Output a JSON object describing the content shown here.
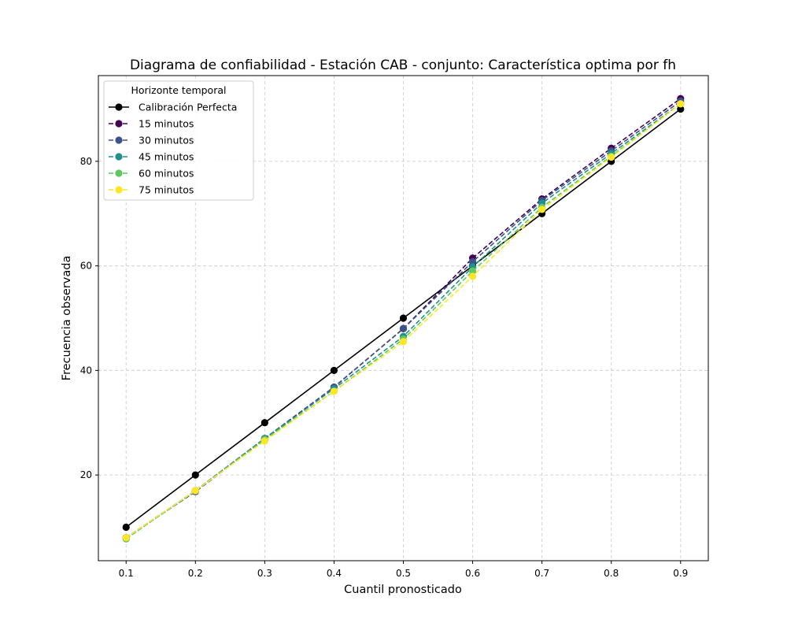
{
  "chart_data": {
    "type": "line",
    "title": "Diagrama de confiabilidad - Estación CAB - conjunto: Característica optima por fh",
    "xlabel": "Cuantil pronosticado",
    "ylabel": "Frecuencia observada",
    "x": [
      0.1,
      0.2,
      0.3,
      0.4,
      0.5,
      0.6,
      0.7,
      0.8,
      0.9
    ],
    "x_tick_labels": [
      "0.1",
      "0.2",
      "0.3",
      "0.4",
      "0.5",
      "0.6",
      "0.7",
      "0.8",
      "0.9"
    ],
    "y_ticks": [
      20,
      40,
      60,
      80
    ],
    "y_tick_labels": [
      "20",
      "40",
      "60",
      "80"
    ],
    "xlim": [
      0.06,
      0.94
    ],
    "ylim": [
      3.6,
      96.4
    ],
    "grid": true,
    "legend_title": "Horizonte temporal",
    "legend_position": "upper-left",
    "series": [
      {
        "name": "Calibración Perfecta",
        "color": "#000000",
        "dashed": false,
        "values": [
          10,
          20,
          30,
          40,
          50,
          60,
          70,
          80,
          90
        ]
      },
      {
        "name": "15 minutos",
        "color": "#440154",
        "dashed": true,
        "values": [
          8.0,
          17.0,
          27.0,
          36.8,
          48.0,
          61.5,
          72.8,
          82.5,
          92.0
        ]
      },
      {
        "name": "30 minutos",
        "color": "#3b528b",
        "dashed": true,
        "values": [
          8.0,
          16.8,
          26.8,
          36.8,
          48.0,
          60.8,
          72.5,
          82.0,
          91.5
        ]
      },
      {
        "name": "45 minutos",
        "color": "#21918c",
        "dashed": true,
        "values": [
          7.8,
          17.0,
          27.0,
          36.5,
          46.5,
          59.8,
          72.0,
          81.5,
          91.0
        ]
      },
      {
        "name": "60 minutos",
        "color": "#5ec962",
        "dashed": true,
        "values": [
          7.8,
          17.0,
          26.8,
          36.0,
          46.0,
          59.0,
          71.2,
          81.0,
          91.0
        ]
      },
      {
        "name": "75 minutos",
        "color": "#fde725",
        "dashed": true,
        "values": [
          8.0,
          17.0,
          26.5,
          36.0,
          45.5,
          58.0,
          70.8,
          80.8,
          91.0
        ]
      }
    ]
  }
}
